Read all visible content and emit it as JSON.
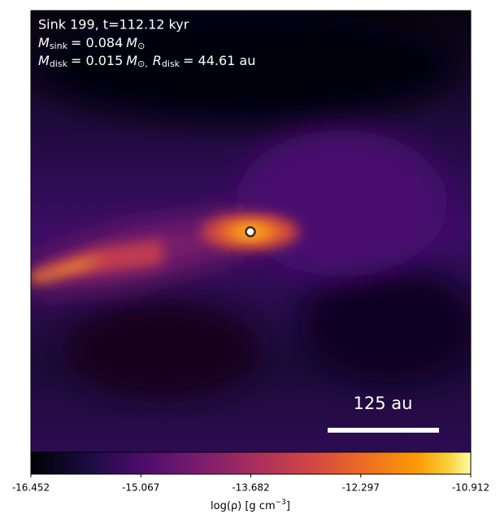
{
  "chart_data": {
    "type": "image",
    "annotation": {
      "line1": "Sink 199, t=112.12 kyr",
      "sink_symbol": "M",
      "sink_sub": "sink",
      "sink_value": "= 0.084",
      "sink_unit": "M",
      "sink_unit_sub": "⊙",
      "disk_symbol": "M",
      "disk_sub": "disk",
      "disk_value": "= 0.015",
      "disk_unit": "M",
      "disk_unit_sub": "⊙,",
      "rdisk_symbol": "R",
      "rdisk_sub": "disk",
      "rdisk_value": "= 44.61 au"
    },
    "scale_bar": "125 au",
    "colormap": "inferno",
    "colorbar": {
      "label": "log(ρ) [g cm",
      "label_sup": "−3",
      "label_end": "]",
      "xlim": [
        -16.452,
        -10.912
      ],
      "xticks": [
        -16.452,
        -15.067,
        -13.682,
        -12.297,
        -10.912
      ]
    }
  }
}
